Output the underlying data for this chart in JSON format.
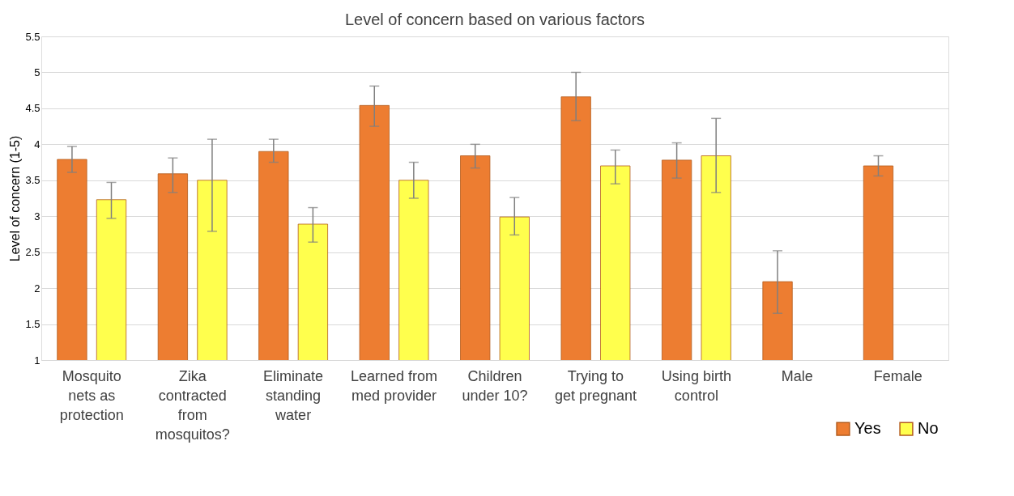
{
  "chart_data": {
    "type": "bar",
    "title": "Level of concern based on various factors",
    "ylabel": "Level of concern (1-5)",
    "categories": [
      "Mosquito nets as protection",
      "Zika contracted from mosquitos?",
      "Eliminate standing water",
      "Learned from med provider",
      "Children under 10?",
      "Trying to get pregnant",
      "Using birth control",
      "Male",
      "Female"
    ],
    "series": [
      {
        "name": "Yes",
        "color": "#ed7d31",
        "values": [
          3.79,
          3.59,
          3.9,
          4.54,
          3.84,
          4.66,
          3.78,
          2.09,
          3.7
        ],
        "errors": [
          [
            3.61,
            3.97
          ],
          [
            3.33,
            3.81
          ],
          [
            3.75,
            4.07
          ],
          [
            4.25,
            4.81
          ],
          [
            3.67,
            4.0
          ],
          [
            4.33,
            5.0
          ],
          [
            3.53,
            4.02
          ],
          [
            1.65,
            2.52
          ],
          [
            3.56,
            3.84
          ]
        ]
      },
      {
        "name": "No",
        "color": "#ffff4d",
        "values": [
          3.23,
          3.5,
          2.89,
          3.5,
          2.99,
          3.7,
          3.84,
          null,
          null
        ],
        "errors": [
          [
            2.97,
            3.47
          ],
          [
            2.79,
            4.07
          ],
          [
            2.64,
            3.12
          ],
          [
            3.25,
            3.75
          ],
          [
            2.74,
            3.26
          ],
          [
            3.45,
            3.92
          ],
          [
            3.33,
            4.36
          ],
          null,
          null
        ]
      }
    ],
    "ylim": [
      1,
      5.5
    ],
    "yticks": [
      1,
      1.5,
      2,
      2.5,
      3,
      3.5,
      4,
      4.5,
      5,
      5.5
    ],
    "grid": "y",
    "legend": "bottom right"
  }
}
